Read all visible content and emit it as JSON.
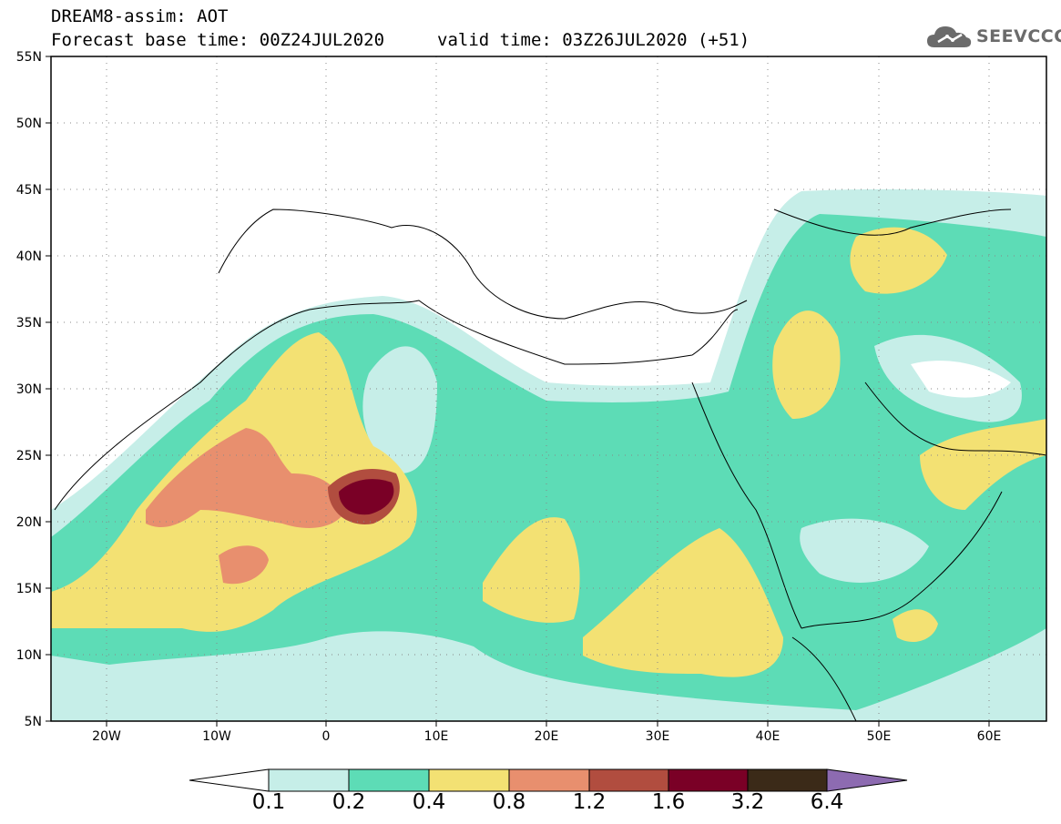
{
  "header": {
    "title": "DREAM8-assim: AOT",
    "base_time": "Forecast base time: 00Z24JUL2020",
    "valid_time": "valid time: 03Z26JUL2020 (+51)"
  },
  "logo": {
    "text": "SEEVCCC",
    "icon": "cloud-icon"
  },
  "map": {
    "projection": "lat-lon",
    "lon_range": [
      -25,
      65
    ],
    "lat_range": [
      5,
      55
    ],
    "lat_ticks": [
      "55N",
      "50N",
      "45N",
      "40N",
      "35N",
      "30N",
      "25N",
      "20N",
      "15N",
      "10N",
      "5N"
    ],
    "lon_ticks": [
      "20W",
      "10W",
      "0",
      "10E",
      "20E",
      "30E",
      "40E",
      "50E",
      "60E"
    ],
    "grid": "dotted",
    "background": "#ffffff"
  },
  "colorbar": {
    "levels": [
      "0.1",
      "0.2",
      "0.4",
      "0.8",
      "1.2",
      "1.6",
      "3.2",
      "6.4"
    ],
    "colors": [
      "#ffffff",
      "#c6eee8",
      "#5ddcb6",
      "#f3e173",
      "#e88f6e",
      "#b14d3f",
      "#7a0026",
      "#3b2a18",
      "#8d6bb1"
    ]
  }
}
